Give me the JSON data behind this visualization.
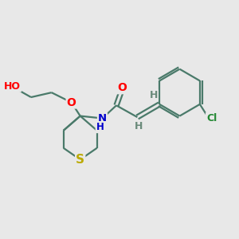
{
  "bg_color": "#e8e8e8",
  "bond_color": "#4a7a6a",
  "atom_colors": {
    "O": "#ff0000",
    "N": "#0000cc",
    "S": "#bbaa00",
    "Cl": "#228833",
    "H": "#6a8a7a"
  }
}
